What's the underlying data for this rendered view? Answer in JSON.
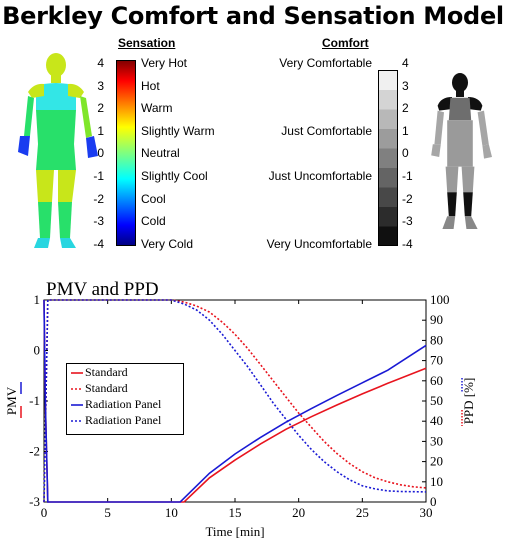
{
  "title": "Berkley Comfort and Sensation Model",
  "sensation": {
    "heading": "Sensation",
    "ticks": [
      "4",
      "3",
      "2",
      "1",
      "0",
      "-1",
      "-2",
      "-3",
      "-4"
    ],
    "labels": [
      "Very Hot",
      "Hot",
      "Warm",
      "Slightly Warm",
      "Neutral",
      "Slightly Cool",
      "Cool",
      "Cold",
      "Very Cold"
    ]
  },
  "comfort": {
    "heading": "Comfort",
    "ticks": [
      "4",
      "3",
      "2",
      "1",
      "0",
      "-1",
      "-2",
      "-3",
      "-4"
    ],
    "labels": [
      "Very Comfortable",
      "Just Comfortable",
      "Just Uncomfortable",
      "Very Uncomfortable"
    ]
  },
  "colors": {
    "standard": "#e8141e",
    "radiation": "#1a1ad4",
    "skin_dark": "#1a1a1a"
  },
  "chart_data": {
    "type": "line",
    "title": "PMV and PPD",
    "xlabel": "Time [min]",
    "ylabel_left": "PMV",
    "ylabel_right": "PPD [%]",
    "xlim": [
      0,
      30
    ],
    "ylim_left": [
      -3,
      1
    ],
    "ylim_right": [
      0,
      100
    ],
    "x_ticks": [
      "0",
      "5",
      "10",
      "15",
      "20",
      "25",
      "30"
    ],
    "y_ticks_left": [
      "1",
      "0",
      "-1",
      "-2",
      "-3"
    ],
    "y_ticks_right": [
      "100",
      "90",
      "80",
      "70",
      "60",
      "50",
      "40",
      "30",
      "20",
      "10",
      "0"
    ],
    "series": [
      {
        "name": "Standard",
        "axis": "left",
        "style": "solid",
        "color": "#e8141e",
        "x": [
          0,
          0.1,
          0.3,
          11,
          13,
          15,
          17,
          19,
          21,
          23,
          25,
          27,
          30
        ],
        "y": [
          1,
          -1,
          -3,
          -3,
          -2.52,
          -2.17,
          -1.85,
          -1.56,
          -1.31,
          -1.08,
          -0.86,
          -0.65,
          -0.35
        ]
      },
      {
        "name": "Standard",
        "axis": "right",
        "style": "dotted",
        "color": "#e8141e",
        "x": [
          0,
          0.3,
          10,
          11,
          12,
          13,
          14,
          15,
          16,
          17,
          18,
          19,
          20,
          21,
          22,
          23,
          24,
          25,
          26,
          27,
          28,
          29,
          30
        ],
        "y": [
          0,
          100,
          100,
          99,
          97,
          94,
          89,
          83,
          76,
          68,
          60,
          52,
          44,
          37,
          30,
          24,
          19,
          15,
          12,
          10,
          8.5,
          7.5,
          7
        ]
      },
      {
        "name": "Radiation Panel",
        "axis": "left",
        "style": "solid",
        "color": "#1a1ad4",
        "x": [
          0,
          0.1,
          0.3,
          10.7,
          13,
          15,
          17,
          19,
          21,
          23,
          25,
          27,
          30
        ],
        "y": [
          1,
          -1,
          -3,
          -3,
          -2.43,
          -2.05,
          -1.72,
          -1.42,
          -1.15,
          -0.89,
          -0.64,
          -0.39,
          0.1
        ]
      },
      {
        "name": "Radiation Panel",
        "axis": "right",
        "style": "dotted",
        "color": "#1a1ad4",
        "x": [
          0,
          0.3,
          10,
          11,
          12,
          13,
          14,
          15,
          16,
          17,
          18,
          19,
          20,
          21,
          22,
          23,
          24,
          25,
          26,
          27,
          28,
          29,
          30
        ],
        "y": [
          0,
          100,
          100,
          98,
          95,
          90,
          83,
          75,
          67,
          58,
          49,
          41,
          33,
          26,
          20,
          15,
          11,
          8,
          6.5,
          5.5,
          5.2,
          5.1,
          5
        ]
      }
    ]
  }
}
